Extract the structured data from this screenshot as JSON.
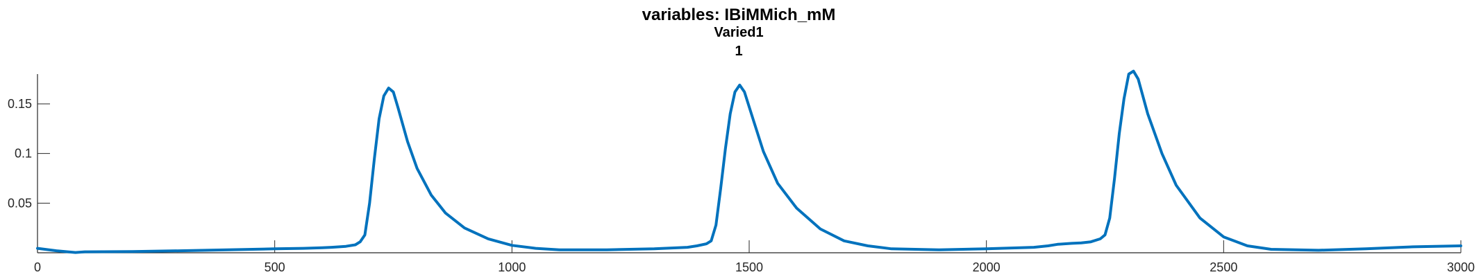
{
  "chart_data": {
    "type": "line",
    "title": "variables: IBiMMich_mM",
    "subtitle": "Varied1",
    "subtitle2": "1",
    "xlabel": "",
    "ylabel": "",
    "xlim": [
      0,
      3000
    ],
    "ylim": [
      0,
      0.18
    ],
    "grid": false,
    "xticks": [
      0,
      500,
      1000,
      1500,
      2000,
      2500,
      3000
    ],
    "xtick_labels": [
      "0",
      "500",
      "1000",
      "1500",
      "2000",
      "2500",
      "3000"
    ],
    "yticks": [
      0.05,
      0.1,
      0.15
    ],
    "ytick_labels": [
      "0.05",
      "0.1",
      "0.15"
    ],
    "series": [
      {
        "color": "#0072BD",
        "x": [
          0,
          40,
          80,
          100,
          200,
          300,
          400,
          500,
          560,
          600,
          620,
          650,
          670,
          680,
          690,
          700,
          710,
          720,
          730,
          740,
          750,
          760,
          780,
          800,
          830,
          860,
          900,
          950,
          1000,
          1050,
          1100,
          1200,
          1300,
          1370,
          1390,
          1410,
          1420,
          1430,
          1440,
          1450,
          1460,
          1470,
          1480,
          1490,
          1510,
          1530,
          1560,
          1600,
          1650,
          1700,
          1750,
          1800,
          1900,
          2000,
          2100,
          2130,
          2150,
          2180,
          2200,
          2220,
          2240,
          2250,
          2260,
          2270,
          2280,
          2290,
          2300,
          2310,
          2320,
          2340,
          2370,
          2400,
          2450,
          2500,
          2550,
          2600,
          2700,
          2800,
          2900,
          3000
        ],
        "y": [
          0.0045,
          0.002,
          0.0003,
          0.001,
          0.0012,
          0.002,
          0.003,
          0.004,
          0.0045,
          0.005,
          0.0055,
          0.0065,
          0.008,
          0.011,
          0.018,
          0.05,
          0.095,
          0.135,
          0.158,
          0.166,
          0.162,
          0.146,
          0.112,
          0.085,
          0.058,
          0.04,
          0.025,
          0.014,
          0.0075,
          0.0045,
          0.003,
          0.003,
          0.004,
          0.0055,
          0.007,
          0.009,
          0.012,
          0.028,
          0.065,
          0.105,
          0.14,
          0.162,
          0.169,
          0.162,
          0.132,
          0.102,
          0.07,
          0.045,
          0.024,
          0.012,
          0.007,
          0.004,
          0.003,
          0.004,
          0.0055,
          0.007,
          0.0085,
          0.0095,
          0.01,
          0.011,
          0.014,
          0.018,
          0.035,
          0.075,
          0.12,
          0.155,
          0.18,
          0.183,
          0.175,
          0.14,
          0.1,
          0.068,
          0.035,
          0.016,
          0.007,
          0.0035,
          0.0025,
          0.004,
          0.006,
          0.007
        ]
      }
    ]
  }
}
